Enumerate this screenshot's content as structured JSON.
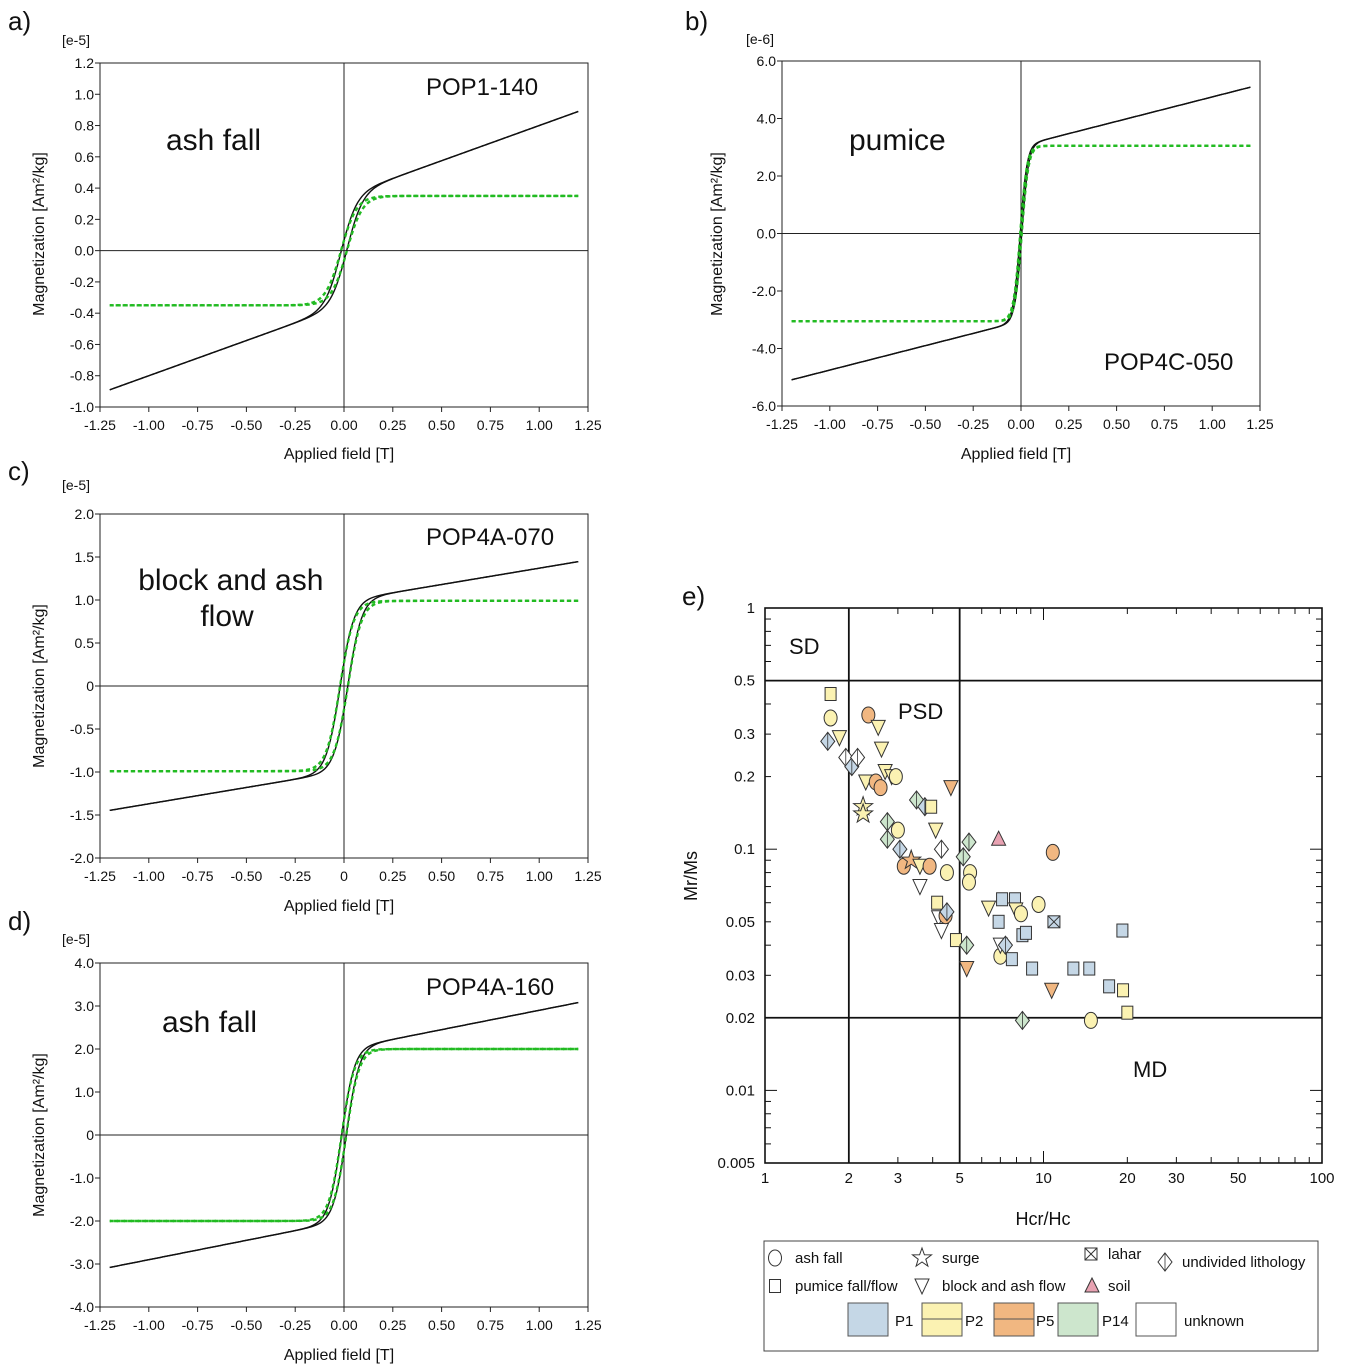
{
  "chart_data": [
    {
      "id": "a",
      "type": "line",
      "panel_label": "a)",
      "sample": "POP1-140",
      "annotation": "ash fall",
      "multiplier": "[e-5]",
      "xlabel": "Applied field [T]",
      "ylabel": "Magnetization [Am²/kg]",
      "xlim": [
        -1.25,
        1.25
      ],
      "ylim": [
        -1.0,
        1.2
      ],
      "xticks": [
        "-1.25",
        "-1.00",
        "-0.75",
        "-0.50",
        "-0.25",
        "0.00",
        "0.25",
        "0.50",
        "0.75",
        "1.00",
        "1.25"
      ],
      "yticks": [
        "-1.0",
        "-0.8",
        "-0.6",
        "-0.4",
        "-0.2",
        "0.0",
        "0.2",
        "0.4",
        "0.6",
        "0.8",
        "1.0",
        "1.2"
      ],
      "curve": {
        "linear": 0.45,
        "ferro_sat": 0.35,
        "width": 0.08,
        "hc": 0.015
      },
      "series": [
        {
          "style": "solid",
          "color": "#111111",
          "x": [
            -1.2,
            -0.6,
            -0.2,
            0.0,
            0.2,
            0.6,
            1.2
          ],
          "y": [
            -0.9,
            -0.6,
            -0.38,
            0.0,
            0.38,
            0.6,
            0.9
          ]
        },
        {
          "style": "dashed",
          "color": "#22bb22",
          "x": [
            -1.2,
            -0.6,
            -0.2,
            0.0,
            0.2,
            0.6,
            1.2
          ],
          "y": [
            -0.35,
            -0.34,
            -0.28,
            0.0,
            0.28,
            0.34,
            0.35
          ]
        }
      ]
    },
    {
      "id": "b",
      "type": "line",
      "panel_label": "b)",
      "sample": "POP4C-050",
      "annotation": "pumice",
      "multiplier": "[e-6]",
      "xlabel": "Applied field [T]",
      "ylabel": "Magnetization [Am²/kg]",
      "xlim": [
        -1.25,
        1.25
      ],
      "ylim": [
        -6.0,
        6.0
      ],
      "xticks": [
        "-1.25",
        "-1.00",
        "-0.75",
        "-0.50",
        "-0.25",
        "0.00",
        "0.25",
        "0.50",
        "0.75",
        "1.00",
        "1.25"
      ],
      "yticks": [
        "-6.0",
        "-4.0",
        "-2.0",
        "0.0",
        "2.0",
        "4.0",
        "6.0"
      ],
      "curve": {
        "linear": 1.7,
        "ferro_sat": 3.05,
        "width": 0.035,
        "hc": 0.004
      },
      "series": [
        {
          "style": "solid",
          "color": "#111111",
          "x": [
            -1.2,
            -0.6,
            -0.1,
            0.0,
            0.1,
            0.6,
            1.2
          ],
          "y": [
            -5.1,
            -4.0,
            -2.9,
            0.0,
            2.9,
            4.0,
            5.1
          ]
        },
        {
          "style": "dashed",
          "color": "#22bb22",
          "x": [
            -1.2,
            -0.6,
            -0.1,
            0.0,
            0.1,
            0.6,
            1.2
          ],
          "y": [
            -3.05,
            -3.0,
            -2.8,
            0.0,
            2.8,
            3.0,
            3.05
          ]
        }
      ]
    },
    {
      "id": "c",
      "type": "line",
      "panel_label": "c)",
      "sample": "POP4A-070",
      "annotation": "block and ash flow",
      "multiplier": "[e-5]",
      "xlabel": "Applied field [T]",
      "ylabel": "Magnetization [Am²/kg]",
      "xlim": [
        -1.25,
        1.25
      ],
      "ylim": [
        -2.0,
        2.0
      ],
      "xticks": [
        "-1.25",
        "-1.00",
        "-0.75",
        "-0.50",
        "-0.25",
        "0",
        "0.25",
        "0.50",
        "0.75",
        "1.00",
        "1.25"
      ],
      "yticks": [
        "-2.0",
        "-1.5",
        "-1.0",
        "-0.5",
        "0",
        "0.5",
        "1.0",
        "1.5",
        "2.0"
      ],
      "curve": {
        "linear": 0.38,
        "ferro_sat": 0.99,
        "width": 0.07,
        "hc": 0.02
      },
      "series": [
        {
          "style": "solid",
          "color": "#111111",
          "x": [
            -1.2,
            -0.6,
            -0.2,
            0.0,
            0.2,
            0.6,
            1.2
          ],
          "y": [
            -1.43,
            -1.2,
            -0.93,
            0.0,
            0.93,
            1.2,
            1.43
          ]
        },
        {
          "style": "dashed",
          "color": "#22bb22",
          "x": [
            -1.2,
            -0.6,
            -0.2,
            0.0,
            0.2,
            0.6,
            1.2
          ],
          "y": [
            -1.0,
            -0.98,
            -0.88,
            0.0,
            0.88,
            0.98,
            1.0
          ]
        }
      ]
    },
    {
      "id": "d",
      "type": "line",
      "panel_label": "d)",
      "sample": "POP4A-160",
      "annotation": "ash fall",
      "multiplier": "[e-5]",
      "xlabel": "Applied field [T]",
      "ylabel": "Magnetization [Am²/kg]",
      "xlim": [
        -1.25,
        1.25
      ],
      "ylim": [
        -4.0,
        4.0
      ],
      "xticks": [
        "-1.25",
        "-1.00",
        "-0.75",
        "-0.50",
        "-0.25",
        "0.00",
        "0.25",
        "0.50",
        "0.75",
        "1.00",
        "1.25"
      ],
      "yticks": [
        "-4.0",
        "-3.0",
        "-2.0",
        "-1.0",
        "0",
        "1.0",
        "2.0",
        "3.0",
        "4.0"
      ],
      "curve": {
        "linear": 0.9,
        "ferro_sat": 2.0,
        "width": 0.065,
        "hc": 0.012
      },
      "series": [
        {
          "style": "solid",
          "color": "#111111",
          "x": [
            -1.2,
            -0.6,
            -0.2,
            0.0,
            0.2,
            0.6,
            1.2
          ],
          "y": [
            -3.08,
            -2.5,
            -1.9,
            0.0,
            1.9,
            2.5,
            3.08
          ]
        },
        {
          "style": "dashed",
          "color": "#22bb22",
          "x": [
            -1.2,
            -0.6,
            -0.2,
            0.0,
            0.2,
            0.6,
            1.2
          ],
          "y": [
            -2.0,
            -1.98,
            -1.8,
            0.0,
            1.8,
            1.98,
            2.0
          ]
        }
      ]
    },
    {
      "id": "e",
      "type": "scatter",
      "panel_label": "e)",
      "xlabel": "Hcr/Hc",
      "ylabel": "Mr/Ms",
      "xscale": "log",
      "yscale": "log",
      "xlim": [
        1,
        100
      ],
      "ylim": [
        0.005,
        1
      ],
      "xticks": [
        "1",
        "2",
        "3",
        "5",
        "10",
        "20",
        "30",
        "50",
        "100"
      ],
      "yticks": [
        "0.005",
        "0.01",
        "0.02",
        "0.03",
        "0.05",
        "0.1",
        "0.2",
        "0.3",
        "0.5",
        "1"
      ],
      "regions": [
        "SD",
        "PSD",
        "MD"
      ],
      "boundaries": {
        "x": [
          2,
          5
        ],
        "y": [
          0.5,
          0.02
        ]
      },
      "colors": {
        "P1": "#c5d7e6",
        "P2": "#fbf2b2",
        "P5": "#f1b781",
        "P14": "#cde6cd",
        "unknown": "#ffffff",
        "soil": "#e8a2b2"
      },
      "points": [
        {
          "x": 1.72,
          "y": 0.44,
          "marker": "square",
          "group": "P2"
        },
        {
          "x": 1.72,
          "y": 0.35,
          "marker": "circle",
          "group": "P2"
        },
        {
          "x": 1.68,
          "y": 0.28,
          "marker": "diamond",
          "group": "P1"
        },
        {
          "x": 1.85,
          "y": 0.29,
          "marker": "triangle",
          "group": "P2"
        },
        {
          "x": 1.95,
          "y": 0.24,
          "marker": "diamond",
          "group": "unknown"
        },
        {
          "x": 2.05,
          "y": 0.22,
          "marker": "diamond",
          "group": "P1"
        },
        {
          "x": 2.15,
          "y": 0.24,
          "marker": "diamond",
          "group": "unknown"
        },
        {
          "x": 2.35,
          "y": 0.36,
          "marker": "circle",
          "group": "P5"
        },
        {
          "x": 2.3,
          "y": 0.19,
          "marker": "triangle",
          "group": "P2"
        },
        {
          "x": 2.5,
          "y": 0.19,
          "marker": "circle",
          "group": "P5"
        },
        {
          "x": 2.6,
          "y": 0.18,
          "marker": "circle",
          "group": "P5"
        },
        {
          "x": 2.55,
          "y": 0.32,
          "marker": "triangle",
          "group": "P2"
        },
        {
          "x": 2.62,
          "y": 0.26,
          "marker": "triangle",
          "group": "P2"
        },
        {
          "x": 2.7,
          "y": 0.21,
          "marker": "triangle",
          "group": "P2"
        },
        {
          "x": 2.85,
          "y": 0.2,
          "marker": "triangle",
          "group": "P2"
        },
        {
          "x": 2.95,
          "y": 0.2,
          "marker": "circle",
          "group": "P2"
        },
        {
          "x": 2.25,
          "y": 0.15,
          "marker": "star",
          "group": "P2"
        },
        {
          "x": 2.25,
          "y": 0.14,
          "marker": "star",
          "group": "P2"
        },
        {
          "x": 2.75,
          "y": 0.13,
          "marker": "diamond",
          "group": "P14"
        },
        {
          "x": 2.75,
          "y": 0.11,
          "marker": "diamond",
          "group": "P14"
        },
        {
          "x": 3.0,
          "y": 0.12,
          "marker": "circle",
          "group": "P2"
        },
        {
          "x": 3.05,
          "y": 0.1,
          "marker": "diamond",
          "group": "P1"
        },
        {
          "x": 3.15,
          "y": 0.085,
          "marker": "circle",
          "group": "P5"
        },
        {
          "x": 3.35,
          "y": 0.09,
          "marker": "star",
          "group": "P5"
        },
        {
          "x": 3.6,
          "y": 0.085,
          "marker": "triangle",
          "group": "P2"
        },
        {
          "x": 3.5,
          "y": 0.16,
          "marker": "diamond",
          "group": "P14"
        },
        {
          "x": 3.75,
          "y": 0.15,
          "marker": "diamond",
          "group": "P1"
        },
        {
          "x": 3.95,
          "y": 0.15,
          "marker": "square",
          "group": "P2"
        },
        {
          "x": 4.1,
          "y": 0.12,
          "marker": "triangle",
          "group": "P2"
        },
        {
          "x": 3.9,
          "y": 0.085,
          "marker": "circle",
          "group": "P5"
        },
        {
          "x": 4.3,
          "y": 0.1,
          "marker": "diamond",
          "group": "unknown"
        },
        {
          "x": 4.5,
          "y": 0.08,
          "marker": "circle",
          "group": "P2"
        },
        {
          "x": 3.6,
          "y": 0.07,
          "marker": "triangle",
          "group": "unknown"
        },
        {
          "x": 4.15,
          "y": 0.06,
          "marker": "square",
          "group": "P2"
        },
        {
          "x": 4.2,
          "y": 0.052,
          "marker": "triangle",
          "group": "unknown"
        },
        {
          "x": 4.3,
          "y": 0.046,
          "marker": "triangle",
          "group": "unknown"
        },
        {
          "x": 4.45,
          "y": 0.053,
          "marker": "circle",
          "group": "P5"
        },
        {
          "x": 4.5,
          "y": 0.055,
          "marker": "diamond",
          "group": "P1"
        },
        {
          "x": 4.65,
          "y": 0.18,
          "marker": "triangle",
          "group": "P5"
        },
        {
          "x": 4.85,
          "y": 0.042,
          "marker": "square",
          "group": "P2"
        },
        {
          "x": 5.15,
          "y": 0.093,
          "marker": "diamond",
          "group": "P14"
        },
        {
          "x": 5.3,
          "y": 0.04,
          "marker": "diamond",
          "group": "P14"
        },
        {
          "x": 5.4,
          "y": 0.107,
          "marker": "diamond",
          "group": "P14"
        },
        {
          "x": 5.45,
          "y": 0.08,
          "marker": "circle",
          "group": "P2"
        },
        {
          "x": 5.4,
          "y": 0.073,
          "marker": "circle",
          "group": "P2"
        },
        {
          "x": 5.3,
          "y": 0.032,
          "marker": "triangle",
          "group": "P5"
        },
        {
          "x": 6.35,
          "y": 0.057,
          "marker": "triangle",
          "group": "P2"
        },
        {
          "x": 6.9,
          "y": 0.11,
          "marker": "triangle-up",
          "group": "soil"
        },
        {
          "x": 6.9,
          "y": 0.05,
          "marker": "square",
          "group": "P1"
        },
        {
          "x": 7.1,
          "y": 0.062,
          "marker": "square",
          "group": "P1"
        },
        {
          "x": 7.0,
          "y": 0.036,
          "marker": "circle",
          "group": "P2"
        },
        {
          "x": 7.0,
          "y": 0.04,
          "marker": "triangle",
          "group": "unknown"
        },
        {
          "x": 7.3,
          "y": 0.04,
          "marker": "diamond",
          "group": "P1"
        },
        {
          "x": 7.7,
          "y": 0.035,
          "marker": "square",
          "group": "P1"
        },
        {
          "x": 7.9,
          "y": 0.062,
          "marker": "square",
          "group": "P1"
        },
        {
          "x": 7.95,
          "y": 0.056,
          "marker": "triangle",
          "group": "P2"
        },
        {
          "x": 8.3,
          "y": 0.054,
          "marker": "circle",
          "group": "P2"
        },
        {
          "x": 8.4,
          "y": 0.044,
          "marker": "square",
          "group": "P1"
        },
        {
          "x": 8.65,
          "y": 0.045,
          "marker": "square",
          "group": "P1"
        },
        {
          "x": 8.4,
          "y": 0.0195,
          "marker": "diamond",
          "group": "P14"
        },
        {
          "x": 9.1,
          "y": 0.032,
          "marker": "square",
          "group": "P1"
        },
        {
          "x": 9.6,
          "y": 0.059,
          "marker": "circle",
          "group": "P2"
        },
        {
          "x": 10.8,
          "y": 0.097,
          "marker": "circle",
          "group": "P5"
        },
        {
          "x": 10.9,
          "y": 0.05,
          "marker": "lahar",
          "group": "P1"
        },
        {
          "x": 10.7,
          "y": 0.026,
          "marker": "triangle",
          "group": "P5"
        },
        {
          "x": 12.8,
          "y": 0.032,
          "marker": "square",
          "group": "P1"
        },
        {
          "x": 14.6,
          "y": 0.032,
          "marker": "square",
          "group": "P1"
        },
        {
          "x": 14.8,
          "y": 0.0195,
          "marker": "circle",
          "group": "P2"
        },
        {
          "x": 17.2,
          "y": 0.027,
          "marker": "square",
          "group": "P1"
        },
        {
          "x": 19.2,
          "y": 0.046,
          "marker": "square",
          "group": "P1"
        },
        {
          "x": 19.3,
          "y": 0.026,
          "marker": "square",
          "group": "P2"
        },
        {
          "x": 20.0,
          "y": 0.021,
          "marker": "square",
          "group": "P2"
        }
      ],
      "legend": {
        "symbols": [
          {
            "marker": "circle",
            "label": "ash fall"
          },
          {
            "marker": "star",
            "label": "surge"
          },
          {
            "marker": "lahar",
            "label": "lahar"
          },
          {
            "marker": "diamond",
            "label": "undivided lithology"
          },
          {
            "marker": "square",
            "label": "pumice fall/flow"
          },
          {
            "marker": "triangle",
            "label": "block and ash flow"
          },
          {
            "marker": "triangle-up",
            "label": "soil"
          }
        ],
        "groups": [
          {
            "key": "P1",
            "label": "P1"
          },
          {
            "key": "P2",
            "label": "P2"
          },
          {
            "key": "P5",
            "label": "P5"
          },
          {
            "key": "P14",
            "label": "P14"
          },
          {
            "key": "unknown",
            "label": "unknown"
          }
        ]
      }
    }
  ]
}
